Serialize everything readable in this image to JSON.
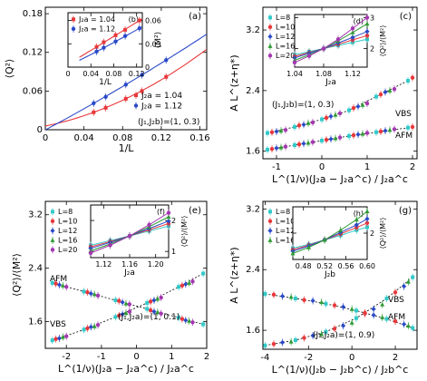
{
  "chart_data": [
    {
      "type": "scatter",
      "panel": "(a)",
      "xlabel": "1/L",
      "ylabel": "⟨Q²⟩",
      "xlim": [
        0,
        0.167
      ],
      "ylim": [
        0,
        0.19
      ],
      "xticks": [
        "0",
        "0.04",
        "0.08",
        "0.12",
        "0.16"
      ],
      "yticks": [
        "0",
        "0.06",
        "0.12",
        "0.18"
      ],
      "annotation": "(J₁,J₂b)=(1, 0.3)",
      "legend_position": "right",
      "series": [
        {
          "name": "J₂a = 1.04",
          "color": "#e8383b",
          "x": [
            0.05,
            0.0625,
            0.0833,
            0.1,
            0.125
          ],
          "y": [
            0.027,
            0.034,
            0.048,
            0.06,
            0.082
          ]
        },
        {
          "name": "J₂a = 1.12",
          "color": "#2a49c8",
          "x": [
            0.05,
            0.0625,
            0.0833,
            0.1,
            0.125
          ],
          "y": [
            0.041,
            0.051,
            0.07,
            0.085,
            0.108
          ]
        }
      ]
    },
    {
      "type": "scatter",
      "panel": "(b)",
      "inset_of": "(a)",
      "xlabel": "1/L",
      "ylabel": "⟨M²⟩",
      "xlim": [
        0,
        0.13
      ],
      "ylim": [
        0,
        0.07
      ],
      "xticks": [
        "0",
        "0.04",
        "0.08",
        "0.12"
      ],
      "yticks": [
        "0",
        "0.03",
        "0.06"
      ],
      "legend_position": "top-left",
      "series": [
        {
          "name": "J₂a = 1.04",
          "color": "#e8383b",
          "x": [
            0.05,
            0.0625,
            0.0833,
            0.1,
            0.125
          ],
          "y": [
            0.026,
            0.032,
            0.041,
            0.048,
            0.06
          ]
        },
        {
          "name": "J₂a = 1.12",
          "color": "#2a49c8",
          "x": [
            0.05,
            0.0625,
            0.0833,
            0.1,
            0.125
          ],
          "y": [
            0.02,
            0.025,
            0.033,
            0.04,
            0.05
          ]
        }
      ]
    },
    {
      "type": "scatter",
      "panel": "(c)",
      "xlabel": "L^(1/ν)(J₂a − J₂a^c) / J₂a^c",
      "ylabel": "A L^(z+η*)",
      "xlim": [
        -1.3,
        2.1
      ],
      "ylim": [
        1.5,
        3.5
      ],
      "xticks": [
        "-1",
        "0",
        "1",
        "2"
      ],
      "yticks": [
        "1.6",
        "2.4",
        "3.2"
      ],
      "annotations": [
        "(J₁,J₂b)=(1, 0.3)",
        "VBS",
        "AFM"
      ],
      "legend_position": "top-left",
      "series": [
        {
          "name": "L=8",
          "color": "#33c9c9",
          "x": [
            -1.2,
            -0.6,
            0,
            0.6,
            1.2,
            1.9
          ],
          "y": [
            1.84,
            1.92,
            2.02,
            2.14,
            2.32,
            2.53
          ]
        },
        {
          "name": "L=10",
          "color": "#e8383b",
          "x": [
            -1.1,
            -0.5,
            0.1,
            0.7,
            1.3,
            2.0
          ],
          "y": [
            1.85,
            1.94,
            2.04,
            2.17,
            2.35,
            2.57
          ]
        },
        {
          "name": "L=12",
          "color": "#2a49c8",
          "x": [
            -1.0,
            -0.4,
            0.2,
            0.8,
            1.4
          ],
          "y": [
            1.86,
            1.95,
            2.06,
            2.19,
            2.38
          ]
        },
        {
          "name": "L=16",
          "color": "#2e9a35",
          "x": [
            -0.9,
            -0.3,
            0.3,
            0.9,
            1.5
          ],
          "y": [
            1.87,
            1.97,
            2.08,
            2.21,
            2.4
          ]
        },
        {
          "name": "L=20",
          "color": "#a338b0",
          "x": [
            -0.8,
            -0.2,
            0.4,
            1.0,
            1.6
          ],
          "y": [
            1.88,
            1.98,
            2.1,
            2.23,
            2.42
          ]
        }
      ],
      "series_afm": [
        {
          "name": "L=8",
          "color": "#33c9c9",
          "x": [
            -1.2,
            -0.6,
            0,
            0.6,
            1.2,
            1.9
          ],
          "y": [
            1.62,
            1.68,
            1.74,
            1.8,
            1.85,
            1.91
          ]
        },
        {
          "name": "L=10",
          "color": "#e8383b",
          "x": [
            -1.1,
            -0.5,
            0.1,
            0.7,
            1.3,
            2.0
          ],
          "y": [
            1.63,
            1.69,
            1.75,
            1.81,
            1.86,
            1.92
          ]
        },
        {
          "name": "L=12",
          "color": "#2a49c8",
          "x": [
            -1.0,
            -0.4,
            0.2,
            0.8,
            1.4
          ],
          "y": [
            1.64,
            1.7,
            1.76,
            1.82,
            1.87
          ]
        },
        {
          "name": "L=16",
          "color": "#2e9a35",
          "x": [
            -0.9,
            -0.3,
            0.3,
            0.9,
            1.5
          ],
          "y": [
            1.65,
            1.71,
            1.77,
            1.83,
            1.88
          ]
        },
        {
          "name": "L=20",
          "color": "#a338b0",
          "x": [
            -0.8,
            -0.2,
            0.4,
            1.0,
            1.6
          ],
          "y": [
            1.66,
            1.72,
            1.78,
            1.84,
            1.89
          ]
        }
      ]
    },
    {
      "type": "line",
      "panel": "(d)",
      "inset_of": "(c)",
      "xlabel": "J₂a",
      "ylabel": "⟨Q²⟩/⟨M²⟩",
      "xlim": [
        1.04,
        1.14
      ],
      "ylim": [
        1.4,
        3.1
      ],
      "xticks": [
        "1.04",
        "1.08",
        "1.12"
      ],
      "yticks": [
        "2",
        "3"
      ],
      "series": [
        {
          "name": "L=8",
          "color": "#33c9c9",
          "x": [
            1.04,
            1.06,
            1.08,
            1.1,
            1.12,
            1.14
          ],
          "y": [
            1.8,
            1.9,
            2.0,
            2.1,
            2.2,
            2.3
          ]
        },
        {
          "name": "L=10",
          "color": "#e8383b",
          "x": [
            1.04,
            1.06,
            1.08,
            1.1,
            1.12,
            1.14
          ],
          "y": [
            1.75,
            1.87,
            2.0,
            2.14,
            2.28,
            2.42
          ]
        },
        {
          "name": "L=12",
          "color": "#2a49c8",
          "x": [
            1.04,
            1.06,
            1.08,
            1.1,
            1.12,
            1.14
          ],
          "y": [
            1.7,
            1.85,
            2.0,
            2.18,
            2.36,
            2.55
          ]
        },
        {
          "name": "L=16",
          "color": "#2e9a35",
          "x": [
            1.04,
            1.06,
            1.08,
            1.1,
            1.12,
            1.14
          ],
          "y": [
            1.62,
            1.8,
            2.0,
            2.25,
            2.52,
            2.8
          ]
        },
        {
          "name": "L=20",
          "color": "#a338b0",
          "x": [
            1.04,
            1.06,
            1.08,
            1.1,
            1.12,
            1.14
          ],
          "y": [
            1.55,
            1.76,
            2.0,
            2.3,
            2.65,
            3.0
          ]
        }
      ]
    },
    {
      "type": "scatter",
      "panel": "(e)",
      "xlabel": "L^(1/ν)(J₂a − J₂a^c) / J₂a^c",
      "ylabel": "⟨Q²⟩/⟨M²⟩",
      "xlim": [
        -2.6,
        2.0
      ],
      "ylim": [
        1.2,
        3.4
      ],
      "xticks": [
        "-2",
        "-1",
        "0",
        "1",
        "2"
      ],
      "yticks": [
        "1.6",
        "2.4",
        "3.2"
      ],
      "annotations": [
        "(J₁,J₂a)=(1, 0.1)",
        "AFM",
        "VBS"
      ],
      "legend_position": "top-left",
      "series": [
        {
          "name": "L=8",
          "color": "#33c9c9",
          "x": [
            -2.4,
            -1.5,
            -0.6,
            0.3,
            1.2,
            1.9
          ],
          "y": [
            2.18,
            2.05,
            1.92,
            1.79,
            1.66,
            1.56
          ]
        },
        {
          "name": "L=10",
          "color": "#e8383b",
          "x": [
            -2.3,
            -1.4,
            -0.5,
            0.4,
            1.3
          ],
          "y": [
            2.17,
            2.04,
            1.91,
            1.77,
            1.64
          ]
        },
        {
          "name": "L=12",
          "color": "#2a49c8",
          "x": [
            -2.2,
            -1.3,
            -0.4,
            0.5,
            1.4
          ],
          "y": [
            2.15,
            2.02,
            1.89,
            1.75,
            1.62
          ]
        },
        {
          "name": "L=16",
          "color": "#2e9a35",
          "x": [
            -2.1,
            -1.2,
            -0.3,
            0.6,
            1.5
          ],
          "y": [
            2.14,
            2.01,
            1.87,
            1.74,
            1.61
          ]
        },
        {
          "name": "L=20",
          "color": "#a338b0",
          "x": [
            -2.0,
            -1.1,
            -0.2,
            0.7,
            1.6
          ],
          "y": [
            2.12,
            1.99,
            1.86,
            1.72,
            1.59
          ]
        }
      ],
      "series_vbs": [
        {
          "name": "L=8",
          "color": "#33c9c9",
          "x": [
            -2.4,
            -1.5,
            -0.6,
            0.3,
            1.2,
            1.9
          ],
          "y": [
            1.32,
            1.48,
            1.67,
            1.88,
            2.12,
            2.32
          ]
        },
        {
          "name": "L=10",
          "color": "#e8383b",
          "x": [
            -2.3,
            -1.4,
            -0.5,
            0.4,
            1.3
          ],
          "y": [
            1.34,
            1.5,
            1.69,
            1.9,
            2.14
          ]
        },
        {
          "name": "L=12",
          "color": "#2a49c8",
          "x": [
            -2.2,
            -1.3,
            -0.4,
            0.5,
            1.4
          ],
          "y": [
            1.35,
            1.52,
            1.71,
            1.92,
            2.16
          ]
        },
        {
          "name": "L=16",
          "color": "#2e9a35",
          "x": [
            -2.1,
            -1.2,
            -0.3,
            0.6,
            1.5
          ],
          "y": [
            1.37,
            1.53,
            1.73,
            1.94,
            2.18
          ]
        },
        {
          "name": "L=20",
          "color": "#a338b0",
          "x": [
            -2.0,
            -1.1,
            -0.2,
            0.7,
            1.6
          ],
          "y": [
            1.38,
            1.55,
            1.75,
            1.96,
            2.2
          ]
        }
      ]
    },
    {
      "type": "line",
      "panel": "(f)",
      "inset_of": "(e)",
      "xlabel": "J₂a",
      "ylabel": "⟨Q²⟩/⟨M²⟩",
      "xlim": [
        1.1,
        1.22
      ],
      "ylim": [
        0.8,
        2.5
      ],
      "xticks": [
        "1.12",
        "1.16",
        "1.20"
      ],
      "yticks": [
        "1",
        "2"
      ],
      "series": [
        {
          "name": "L=8",
          "color": "#33c9c9",
          "x": [
            1.1,
            1.13,
            1.16,
            1.19,
            1.22
          ],
          "y": [
            1.2,
            1.35,
            1.5,
            1.66,
            1.82
          ]
        },
        {
          "name": "L=10",
          "color": "#e8383b",
          "x": [
            1.1,
            1.13,
            1.16,
            1.19,
            1.22
          ],
          "y": [
            1.15,
            1.32,
            1.5,
            1.7,
            1.9
          ]
        },
        {
          "name": "L=12",
          "color": "#2a49c8",
          "x": [
            1.1,
            1.13,
            1.16,
            1.19,
            1.22
          ],
          "y": [
            1.1,
            1.29,
            1.5,
            1.74,
            1.98
          ]
        },
        {
          "name": "L=16",
          "color": "#2e9a35",
          "x": [
            1.1,
            1.13,
            1.16,
            1.19,
            1.22
          ],
          "y": [
            1.02,
            1.24,
            1.5,
            1.8,
            2.12
          ]
        },
        {
          "name": "L=20",
          "color": "#a338b0",
          "x": [
            1.1,
            1.13,
            1.16,
            1.19,
            1.22
          ],
          "y": [
            0.95,
            1.2,
            1.5,
            1.86,
            2.25
          ]
        }
      ]
    },
    {
      "type": "scatter",
      "panel": "(g)",
      "xlabel": "L^(1/ν)(J₂b − J₂b^c) / J₂b^c",
      "ylabel": "A L^(z+η*)",
      "xlim": [
        -4.1,
        3.0
      ],
      "ylim": [
        1.35,
        3.3
      ],
      "xticks": [
        "-4",
        "-2",
        "0",
        "2"
      ],
      "yticks": [
        "1.6",
        "2.4",
        "3.2"
      ],
      "annotations": [
        "(J₁,J₂a)=(1, 0.9)",
        "VBS",
        "AFM"
      ],
      "legend_position": "top-left",
      "series": [
        {
          "name": "L=8",
          "color": "#33c9c9",
          "x": [
            -4.0,
            -2.6,
            -1.2,
            0.2,
            1.6,
            2.8
          ],
          "y": [
            2.08,
            2.02,
            1.95,
            1.86,
            1.75,
            1.63
          ]
        },
        {
          "name": "L=10",
          "color": "#e8383b",
          "x": [
            -3.6,
            -2.2,
            -0.8,
            0.6,
            2.0
          ],
          "y": [
            2.07,
            2.0,
            1.93,
            1.83,
            1.72
          ]
        },
        {
          "name": "L=12",
          "color": "#2a49c8",
          "x": [
            -3.2,
            -1.8,
            -0.4,
            1.0,
            2.4
          ],
          "y": [
            2.05,
            1.99,
            1.91,
            1.8,
            1.68
          ]
        },
        {
          "name": "L=16",
          "color": "#2e9a35",
          "x": [
            -2.8,
            -1.4,
            0.0,
            1.4,
            2.6
          ],
          "y": [
            2.04,
            1.97,
            1.88,
            1.77,
            1.66
          ]
        }
      ],
      "series_vbs": [
        {
          "name": "L=8",
          "color": "#33c9c9",
          "x": [
            -4.0,
            -2.6,
            -1.2,
            0.2,
            1.6,
            2.8
          ],
          "y": [
            1.4,
            1.47,
            1.58,
            1.76,
            2.02,
            2.3
          ]
        },
        {
          "name": "L=10",
          "color": "#e8383b",
          "x": [
            -3.6,
            -2.2,
            -0.8,
            0.6,
            2.0
          ],
          "y": [
            1.42,
            1.5,
            1.62,
            1.82,
            2.1
          ]
        },
        {
          "name": "L=12",
          "color": "#2a49c8",
          "x": [
            -3.2,
            -1.8,
            -0.4,
            1.0,
            2.4
          ],
          "y": [
            1.44,
            1.53,
            1.66,
            1.88,
            2.18
          ]
        },
        {
          "name": "L=16",
          "color": "#2e9a35",
          "x": [
            -2.8,
            -1.4,
            0.0,
            1.4,
            2.6
          ],
          "y": [
            1.45,
            1.55,
            1.7,
            1.94,
            2.24
          ]
        }
      ]
    },
    {
      "type": "line",
      "panel": "(h)",
      "inset_of": "(g)",
      "xlabel": "J₂b",
      "ylabel": "⟨Q²⟩/⟨M²⟩",
      "xlim": [
        0.46,
        0.6
      ],
      "ylim": [
        1.3,
        2.7
      ],
      "xticks": [
        "0.48",
        "0.52",
        "0.56",
        "0.60"
      ],
      "yticks": [
        "2"
      ],
      "series": [
        {
          "name": "L=8",
          "color": "#33c9c9",
          "x": [
            0.46,
            0.49,
            0.52,
            0.55,
            0.58,
            0.6
          ],
          "y": [
            1.6,
            1.7,
            1.82,
            1.94,
            2.08,
            2.16
          ]
        },
        {
          "name": "L=10",
          "color": "#e8383b",
          "x": [
            0.46,
            0.49,
            0.52,
            0.55,
            0.58,
            0.6
          ],
          "y": [
            1.56,
            1.68,
            1.82,
            1.98,
            2.15,
            2.27
          ]
        },
        {
          "name": "L=12",
          "color": "#2a49c8",
          "x": [
            0.46,
            0.49,
            0.52,
            0.55,
            0.58,
            0.6
          ],
          "y": [
            1.52,
            1.66,
            1.82,
            2.02,
            2.22,
            2.38
          ]
        },
        {
          "name": "L=16",
          "color": "#2e9a35",
          "x": [
            0.46,
            0.49,
            0.52,
            0.55,
            0.58,
            0.6
          ],
          "y": [
            1.46,
            1.62,
            1.82,
            2.08,
            2.36,
            2.58
          ]
        }
      ]
    }
  ]
}
